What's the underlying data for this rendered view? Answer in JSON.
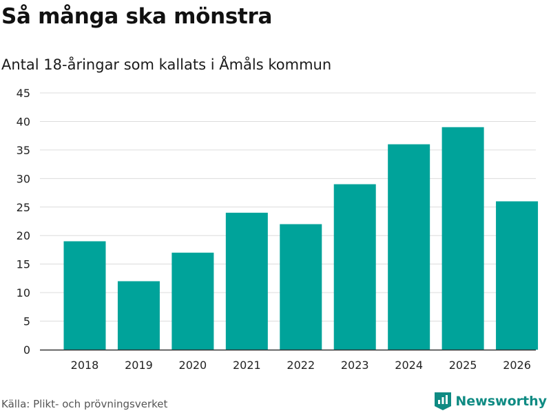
{
  "header": {
    "title": "Så många ska mönstra",
    "subtitle": "Antal 18-åringar som kallats i Åmåls kommun"
  },
  "footer": {
    "source": "Källa: Plikt- och prövningsverket",
    "brand": "Newsworthy",
    "brand_icon": "newsworthy-logo-icon"
  },
  "colors": {
    "bar": "#00a39a",
    "grid": "#dcdcdc",
    "axis": "#333333",
    "brand": "#0f8b83"
  },
  "chart_data": {
    "type": "bar",
    "title": "Så många ska mönstra",
    "subtitle": "Antal 18-åringar som kallats i Åmåls kommun",
    "xlabel": "",
    "ylabel": "",
    "categories": [
      "2018",
      "2019",
      "2020",
      "2021",
      "2022",
      "2023",
      "2024",
      "2025",
      "2026"
    ],
    "values": [
      19,
      12,
      17,
      24,
      22,
      29,
      36,
      39,
      26
    ],
    "ylim": [
      0,
      45
    ],
    "yticks": [
      0,
      5,
      10,
      15,
      20,
      25,
      30,
      35,
      40,
      45
    ],
    "grid": true,
    "legend": "none"
  }
}
